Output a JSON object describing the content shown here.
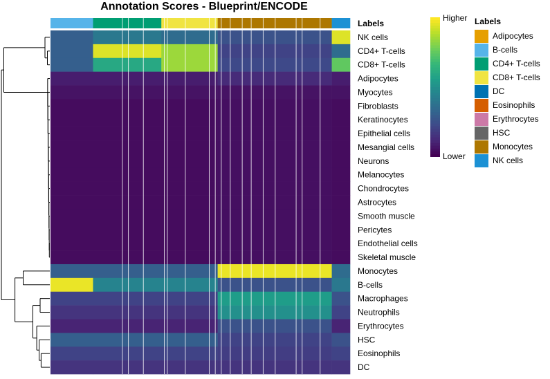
{
  "chart_data": {
    "type": "heatmap",
    "title": "Annotation Scores - Blueprint/ENCODE",
    "annotation_title": "Labels",
    "rows": [
      "NK cells",
      "CD4+ T-cells",
      "CD8+ T-cells",
      "Adipocytes",
      "Myocytes",
      "Fibroblasts",
      "Keratinocytes",
      "Epithelial cells",
      "Mesangial cells",
      "Neurons",
      "Melanocytes",
      "Chondrocytes",
      "Astrocytes",
      "Smooth muscle",
      "Pericytes",
      "Endothelial cells",
      "Skeletal muscle",
      "Monocytes",
      "B-cells",
      "Macrophages",
      "Neutrophils",
      "Erythrocytes",
      "HSC",
      "Eosinophils",
      "DC"
    ],
    "column_groups": [
      {
        "label": "B-cells",
        "fraction": 0.142
      },
      {
        "label": "CD4+ T-cells",
        "fraction": 0.228
      },
      {
        "label": "CD8+ T-cells",
        "fraction": 0.188
      },
      {
        "label": "Monocytes",
        "fraction": 0.381
      },
      {
        "label": "NK cells",
        "fraction": 0.061
      }
    ],
    "scores_by_group": [
      [
        0.3,
        0.4,
        0.35,
        0.25,
        0.95
      ],
      [
        0.3,
        0.95,
        0.85,
        0.2,
        0.35
      ],
      [
        0.3,
        0.6,
        0.85,
        0.22,
        0.75
      ],
      [
        0.08,
        0.08,
        0.08,
        0.12,
        0.08
      ],
      [
        0.05,
        0.05,
        0.05,
        0.05,
        0.05
      ],
      [
        0.03,
        0.03,
        0.03,
        0.04,
        0.03
      ],
      [
        0.03,
        0.03,
        0.03,
        0.04,
        0.03
      ],
      [
        0.03,
        0.03,
        0.03,
        0.04,
        0.03
      ],
      [
        0.03,
        0.03,
        0.03,
        0.04,
        0.03
      ],
      [
        0.03,
        0.03,
        0.03,
        0.04,
        0.03
      ],
      [
        0.03,
        0.03,
        0.03,
        0.04,
        0.03
      ],
      [
        0.03,
        0.03,
        0.03,
        0.04,
        0.03
      ],
      [
        0.03,
        0.03,
        0.03,
        0.04,
        0.03
      ],
      [
        0.03,
        0.03,
        0.03,
        0.04,
        0.03
      ],
      [
        0.03,
        0.03,
        0.03,
        0.04,
        0.03
      ],
      [
        0.03,
        0.03,
        0.03,
        0.04,
        0.03
      ],
      [
        0.03,
        0.03,
        0.03,
        0.04,
        0.03
      ],
      [
        0.3,
        0.3,
        0.3,
        0.97,
        0.35
      ],
      [
        0.97,
        0.45,
        0.45,
        0.25,
        0.4
      ],
      [
        0.2,
        0.2,
        0.2,
        0.55,
        0.25
      ],
      [
        0.15,
        0.15,
        0.15,
        0.5,
        0.2
      ],
      [
        0.1,
        0.1,
        0.1,
        0.25,
        0.1
      ],
      [
        0.3,
        0.3,
        0.3,
        0.2,
        0.25
      ],
      [
        0.2,
        0.2,
        0.2,
        0.18,
        0.2
      ],
      [
        0.15,
        0.15,
        0.15,
        0.15,
        0.15
      ]
    ],
    "colorbar_high_label": "Higher",
    "colorbar_low_label": "Lower",
    "legend_title": "Labels",
    "legend": [
      {
        "label": "Adipocytes",
        "color": "#E69F00"
      },
      {
        "label": "B-cells",
        "color": "#56B4E9"
      },
      {
        "label": "CD4+ T-cells",
        "color": "#009E73"
      },
      {
        "label": "CD8+ T-cells",
        "color": "#F0E442"
      },
      {
        "label": "DC",
        "color": "#0072B2"
      },
      {
        "label": "Eosinophils",
        "color": "#D55E00"
      },
      {
        "label": "Erythrocytes",
        "color": "#CC79A7"
      },
      {
        "label": "HSC",
        "color": "#666666"
      },
      {
        "label": "Monocytes",
        "color": "#AD7700"
      },
      {
        "label": "NK cells",
        "color": "#1C91D4"
      }
    ],
    "colormap": "viridis"
  }
}
